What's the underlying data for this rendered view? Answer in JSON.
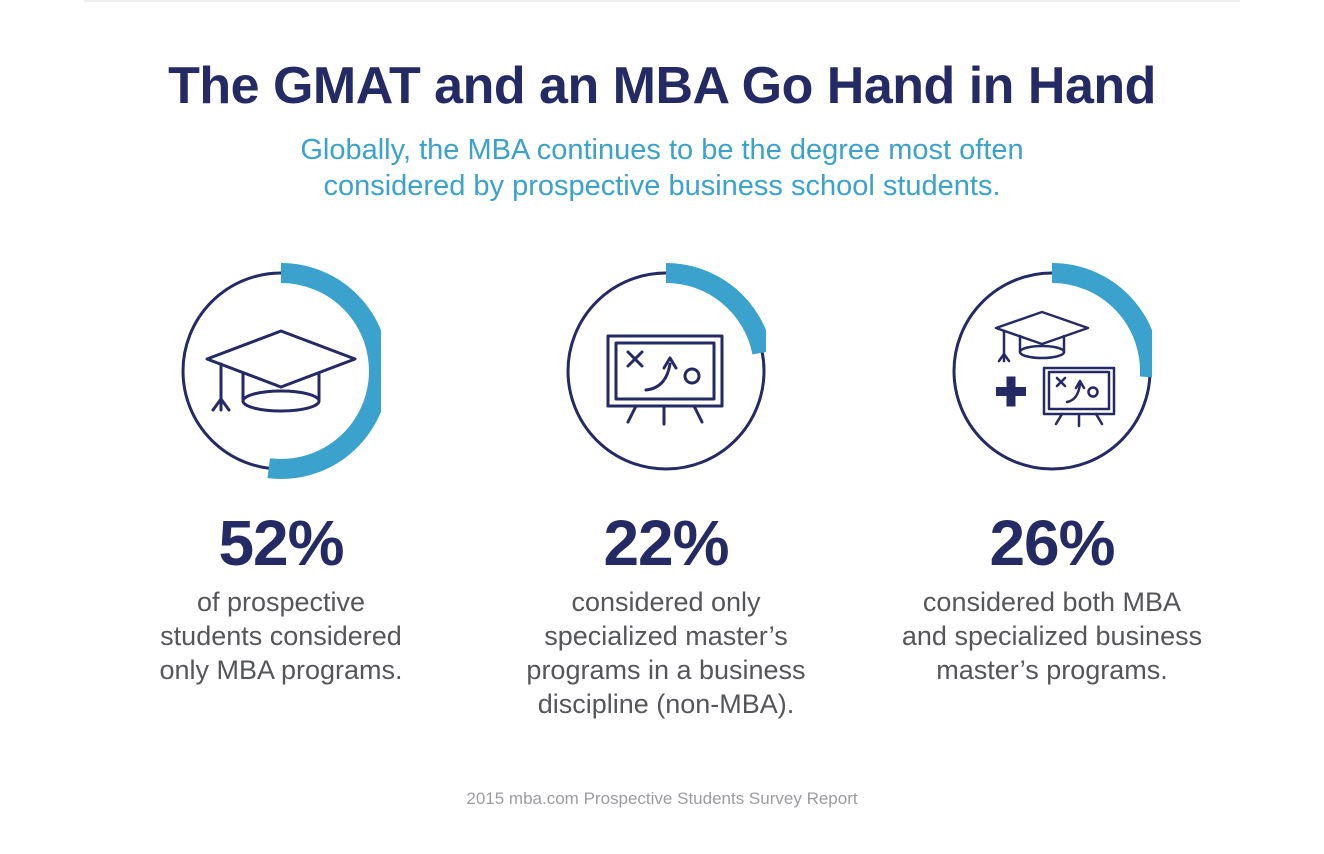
{
  "header": {
    "title": "The GMAT and an MBA Go Hand in Hand",
    "subtitle_lines": [
      "Globally, the MBA continues to be the degree most often",
      "considered by prospective business school students."
    ]
  },
  "colors": {
    "title": "#242a64",
    "ring_outline": "#242a64",
    "ring_arc": "#3ba1cd",
    "subtitle": "#3ba1cd",
    "caption": "#55565a",
    "source": "#9a9ca0"
  },
  "chart_data": {
    "type": "pie",
    "title": "The GMAT and an MBA Go Hand in Hand",
    "unit": "%",
    "categories": [
      "of prospective students considered only MBA programs.",
      "considered only specialized master’s programs in a business discipline (non-MBA).",
      "considered both MBA and specialized business master’s programs."
    ],
    "values": [
      52,
      22,
      26
    ]
  },
  "stats": [
    {
      "value": "52%",
      "percent": 52,
      "icon": "graduation-cap-icon",
      "caption_lines": [
        "of prospective",
        "students considered",
        "only MBA programs."
      ]
    },
    {
      "value": "22%",
      "percent": 22,
      "icon": "strategy-board-icon",
      "caption_lines": [
        "considered only",
        "specialized master’s",
        "programs in a business",
        "discipline (non-MBA)."
      ]
    },
    {
      "value": "26%",
      "percent": 26,
      "icon": "cap-plus-board-icon",
      "caption_lines": [
        "considered both MBA",
        "and specialized business",
        "master’s programs."
      ]
    }
  ],
  "footer": {
    "source": "2015 mba.com Prospective Students Survey Report"
  }
}
